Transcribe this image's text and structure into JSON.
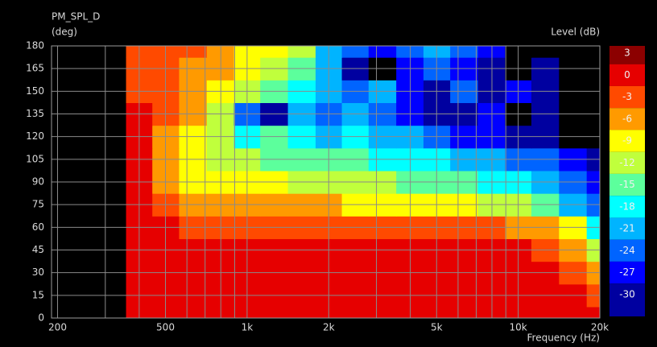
{
  "chart_data": {
    "type": "heatmap",
    "title": "PM_SPL_D",
    "y_label": "(deg)",
    "x_label": "Frequency (Hz)",
    "colorbar_label": "Level (dB)",
    "x_scale": "log",
    "xlim": [
      190,
      20000
    ],
    "ylim": [
      0,
      180
    ],
    "xticks": [
      200,
      500,
      {
        "value": 1000,
        "label": "1k"
      },
      {
        "value": 2000,
        "label": "2k"
      },
      {
        "value": 5000,
        "label": "5k"
      },
      {
        "value": 10000,
        "label": "10k"
      },
      {
        "value": 20000,
        "label": "20k"
      }
    ],
    "xminorticks": [
      300,
      400,
      600,
      700,
      800,
      900,
      3000,
      4000,
      6000,
      7000,
      8000,
      9000
    ],
    "yticks": [
      0,
      15,
      30,
      45,
      60,
      75,
      90,
      105,
      120,
      135,
      150,
      165,
      180
    ],
    "grid": true,
    "x": [
      400,
      500,
      630,
      800,
      1000,
      1250,
      1600,
      2000,
      2500,
      3150,
      4000,
      5000,
      6300,
      8000,
      10000,
      12500,
      16000,
      20000
    ],
    "y": [
      0,
      15,
      30,
      45,
      60,
      75,
      90,
      105,
      120,
      135,
      150,
      165,
      180
    ],
    "z": [
      [
        0,
        0,
        0,
        0,
        0,
        0,
        0,
        0,
        0,
        0,
        0,
        0,
        0,
        0,
        0,
        0,
        0,
        0
      ],
      [
        0,
        0,
        0,
        0,
        0,
        0,
        0,
        0,
        0,
        0,
        0,
        0,
        0,
        0,
        0,
        0,
        0,
        -3
      ],
      [
        0,
        0,
        0,
        0,
        0,
        0,
        0,
        0,
        0,
        0,
        0,
        0,
        0,
        0,
        0,
        0,
        -3,
        -6
      ],
      [
        0,
        0,
        0,
        0,
        0,
        0,
        0,
        0,
        0,
        0,
        0,
        0,
        0,
        0,
        0,
        -3,
        -6,
        -12
      ],
      [
        0,
        0,
        -3,
        -3,
        -3,
        -3,
        -3,
        -3,
        -3,
        -3,
        -3,
        -3,
        -3,
        -3,
        -6,
        -6,
        -9,
        -18
      ],
      [
        0,
        -3,
        -6,
        -6,
        -6,
        -6,
        -6,
        -6,
        -9,
        -9,
        -9,
        -9,
        -9,
        -12,
        -12,
        -15,
        -21,
        -24
      ],
      [
        0,
        -6,
        -9,
        -9,
        -9,
        -9,
        -12,
        -12,
        -12,
        -12,
        -15,
        -15,
        -15,
        -18,
        -18,
        -21,
        -24,
        -27
      ],
      [
        0,
        -6,
        -9,
        -12,
        -12,
        -15,
        -15,
        -15,
        -15,
        -18,
        -18,
        -18,
        -21,
        -21,
        -24,
        -24,
        -27,
        -30
      ],
      [
        0,
        -6,
        -9,
        -12,
        -18,
        -15,
        -18,
        -21,
        -18,
        -21,
        -21,
        -24,
        -27,
        -27,
        -30,
        -30,
        -36,
        -36
      ],
      [
        0,
        -3,
        -6,
        -12,
        -24,
        -30,
        -21,
        -24,
        -21,
        -24,
        -27,
        -30,
        -30,
        -27,
        -36,
        -30,
        -36,
        -36
      ],
      [
        -3,
        -3,
        -6,
        -9,
        -12,
        -15,
        -18,
        -21,
        -24,
        -21,
        -27,
        -30,
        -24,
        -30,
        -27,
        -30,
        -36,
        -36
      ],
      [
        -3,
        -3,
        -6,
        -6,
        -9,
        -12,
        -15,
        -21,
        -30,
        -36,
        -27,
        -24,
        -27,
        -30,
        -36,
        -30,
        -36,
        -36
      ],
      [
        -3,
        -3,
        -3,
        -6,
        -9,
        -9,
        -12,
        -21,
        -24,
        -27,
        -24,
        -21,
        -24,
        -27,
        -36,
        -36,
        -36,
        -36
      ]
    ],
    "clim": [
      -33,
      4
    ],
    "levels": [
      {
        "value": 3,
        "color": "#8c0000"
      },
      {
        "value": 0,
        "color": "#e60000"
      },
      {
        "value": -3,
        "color": "#ff4a00"
      },
      {
        "value": -6,
        "color": "#ff9a00"
      },
      {
        "value": -9,
        "color": "#ffff00"
      },
      {
        "value": -12,
        "color": "#c0ff3c"
      },
      {
        "value": -15,
        "color": "#5cff9c"
      },
      {
        "value": -18,
        "color": "#00ffff"
      },
      {
        "value": -21,
        "color": "#00b4ff"
      },
      {
        "value": -24,
        "color": "#0064ff"
      },
      {
        "value": -27,
        "color": "#0000ff"
      },
      {
        "value": -30,
        "color": "#0000a0"
      }
    ],
    "background": "#000000"
  }
}
